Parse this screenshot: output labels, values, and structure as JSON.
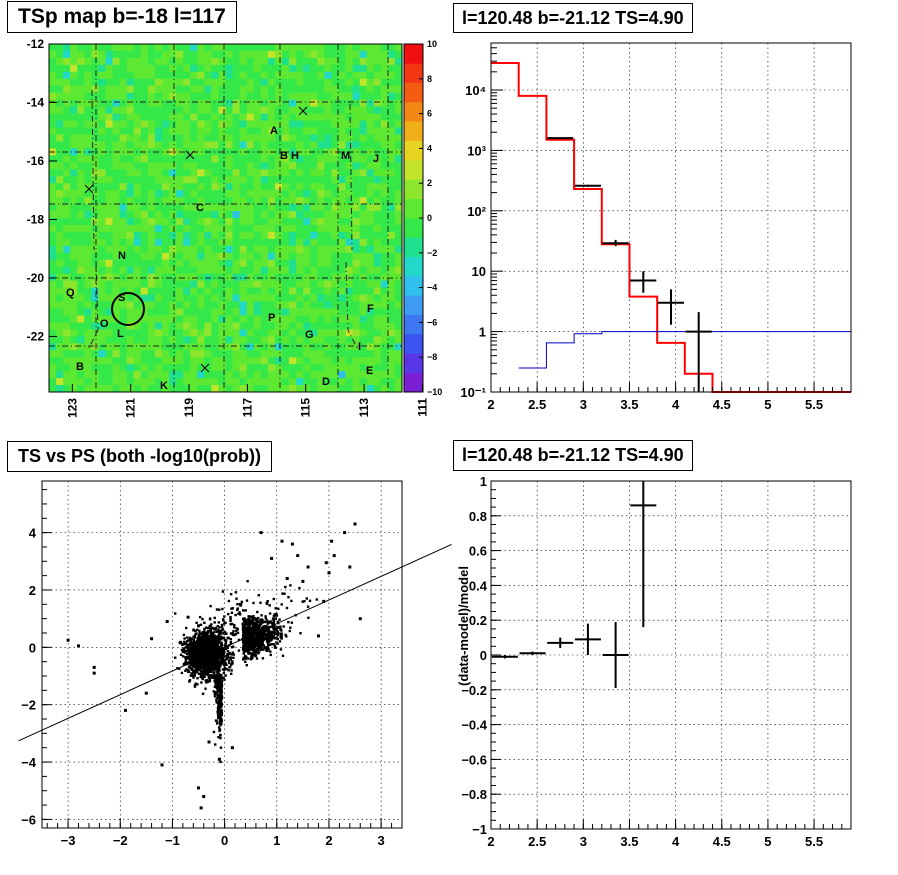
{
  "panels": {
    "tl": {
      "title": "TSp map b=-18 l=117"
    },
    "tr": {
      "title": "l=120.48 b=-21.12 TS=4.90"
    },
    "bl": {
      "title": "TS vs PS (both -log10(prob))"
    },
    "br": {
      "title": "l=120.48 b=-21.12 TS=4.90"
    }
  },
  "chart_data": [
    {
      "type": "heatmap",
      "title": "TSp map b=-18 l=117",
      "x_ticks": [
        "123",
        "121",
        "119",
        "117",
        "115",
        "113",
        "111"
      ],
      "y_ticks": [
        "-12",
        "-14",
        "-16",
        "-18",
        "-20",
        "-22"
      ],
      "xlim": [
        111.7,
        123.8
      ],
      "ylim": [
        -23.9,
        -12.0
      ],
      "colorbar": {
        "range": [
          -10,
          10
        ],
        "ticks": [
          "10",
          "8",
          "6",
          "4",
          "2",
          "0",
          "−2",
          "−4",
          "−6",
          "−8",
          "−10"
        ],
        "colors": [
          "#7a1fd4",
          "#5a37e6",
          "#3a55f0",
          "#3d78f2",
          "#3e9cf2",
          "#2fc0ee",
          "#22d8c8",
          "#1fe08c",
          "#35e84a",
          "#5de832",
          "#8de62c",
          "#c2e42a",
          "#e6d420",
          "#f0ae18",
          "#f48814",
          "#f45c12",
          "#f23512",
          "#f01010"
        ]
      },
      "labels": [
        "A",
        "B H",
        "M",
        "J",
        "C",
        "N",
        "Q",
        "S",
        "O",
        "L",
        "P",
        "G",
        "F",
        "I",
        "B",
        "K",
        "D",
        "E"
      ],
      "crosses": 4,
      "circle": "S",
      "background_value_range": [
        -2,
        2
      ]
    },
    {
      "type": "line",
      "title": "l=120.48 b=-21.12 TS=4.90",
      "y_scale": "log",
      "xlim": [
        2.0,
        5.9
      ],
      "ylim": [
        0.1,
        60000
      ],
      "x_ticks": [
        "2",
        "2.5",
        "3",
        "3.5",
        "4",
        "4.5",
        "5",
        "5.5"
      ],
      "y_ticks": [
        "10⁻¹",
        "1",
        "10",
        "10²",
        "10³",
        "10⁴"
      ],
      "series": [
        {
          "color": "#ff0000",
          "style": "step",
          "edges": [
            2.0,
            2.3,
            2.6,
            2.9,
            3.2,
            3.5,
            3.8,
            4.1,
            4.4,
            5.9
          ],
          "values": [
            28000,
            8000,
            1500,
            230,
            28,
            3.8,
            0.65,
            0.2,
            0.1
          ]
        },
        {
          "color": "#0000cc",
          "style": "step",
          "edges": [
            2.3,
            2.6,
            2.9,
            3.2,
            5.9
          ],
          "values": [
            0.25,
            0.65,
            0.92,
            1.0
          ]
        },
        {
          "color": "#000000",
          "style": "points",
          "x": [
            2.75,
            3.05,
            3.35,
            3.65,
            3.95,
            4.25
          ],
          "y": [
            1600,
            260,
            29,
            7,
            3,
            1
          ],
          "ylow": [
            1560,
            250,
            26,
            4.4,
            1.3,
            0.1
          ],
          "yhigh": [
            1640,
            270,
            33,
            10,
            5,
            2.1
          ]
        }
      ]
    },
    {
      "type": "scatter",
      "title": "TS vs PS (both -log10(prob))",
      "xlim": [
        -3.5,
        3.4
      ],
      "ylim": [
        -6.3,
        5.8
      ],
      "x_ticks": [
        "−3",
        "−2",
        "−1",
        "0",
        "1",
        "2",
        "3"
      ],
      "y_ticks": [
        "−6",
        "−4",
        "−2",
        "0",
        "2",
        "4"
      ],
      "fit_line": {
        "slope": 0.825,
        "intercept": 0.0
      },
      "outliers": [
        [
          -3.0,
          0.25
        ],
        [
          -2.5,
          -0.7
        ],
        [
          -2.5,
          -0.9
        ],
        [
          -2.8,
          0.05
        ],
        [
          -1.5,
          -1.6
        ],
        [
          -1.9,
          -2.2
        ],
        [
          -1.2,
          -4.1
        ],
        [
          -0.5,
          -4.9
        ],
        [
          -0.4,
          -5.2
        ],
        [
          -0.45,
          -5.6
        ],
        [
          2.5,
          4.3
        ],
        [
          2.3,
          4.0
        ],
        [
          2.05,
          3.7
        ],
        [
          1.95,
          2.95
        ],
        [
          2.6,
          1.0
        ],
        [
          2.0,
          2.6
        ],
        [
          1.9,
          1.6
        ],
        [
          1.5,
          2.3
        ],
        [
          1.8,
          0.4
        ],
        [
          1.3,
          3.6
        ],
        [
          0.7,
          4.0
        ],
        [
          1.1,
          3.7
        ],
        [
          1.4,
          3.2
        ],
        [
          2.4,
          2.8
        ],
        [
          2.1,
          3.2
        ],
        [
          1.6,
          2.8
        ],
        [
          0.9,
          3.1
        ],
        [
          1.2,
          2.4
        ],
        [
          -1.4,
          0.3
        ],
        [
          -1.1,
          0.9
        ],
        [
          -0.7,
          1.05
        ],
        [
          -0.5,
          0.75
        ],
        [
          -0.3,
          -3.3
        ],
        [
          -0.1,
          -3.9
        ],
        [
          0.15,
          -3.5
        ]
      ]
    },
    {
      "type": "line",
      "title": "l=120.48 b=-21.12 TS=4.90",
      "ylabel": "(data-model)/model",
      "xlim": [
        2.0,
        5.9
      ],
      "ylim": [
        -1.0,
        1.0
      ],
      "x_ticks": [
        "2",
        "2.5",
        "3",
        "3.5",
        "4",
        "4.5",
        "5",
        "5.5"
      ],
      "y_ticks": [
        "1",
        "0.8",
        "0.6",
        "0.4",
        "0.2",
        "0",
        "−0.2",
        "−0.4",
        "−0.6",
        "−0.8",
        "−1"
      ],
      "series": [
        {
          "color": "#000000",
          "style": "points",
          "x": [
            2.15,
            2.45,
            2.75,
            3.05,
            3.35,
            3.65
          ],
          "y": [
            -0.01,
            0.01,
            0.07,
            0.09,
            0.0,
            0.86
          ],
          "ylow": [
            -0.02,
            0.0,
            0.04,
            0.0,
            -0.19,
            0.16
          ],
          "yhigh": [
            0.0,
            0.02,
            0.1,
            0.18,
            0.19,
            1.0
          ]
        }
      ]
    }
  ]
}
